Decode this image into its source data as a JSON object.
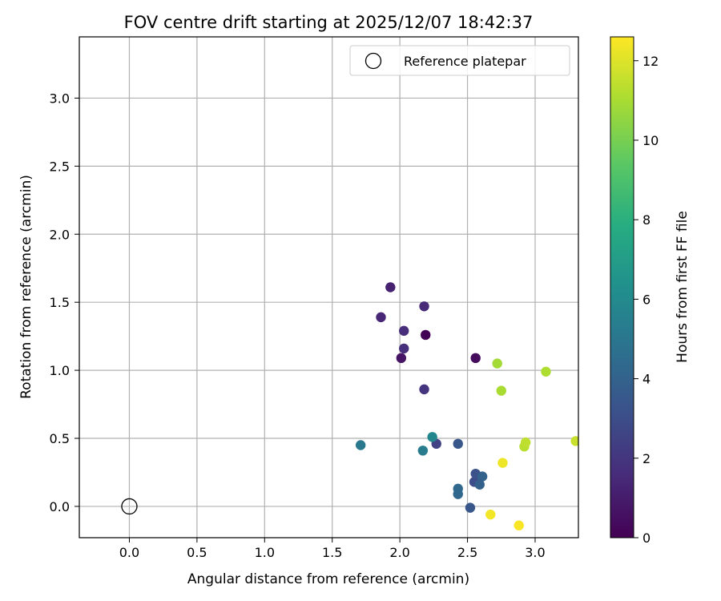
{
  "chart_data": {
    "type": "scatter",
    "title": "FOV centre drift starting at 2025/12/07 18:42:37",
    "xlabel": "Angular distance from reference (arcmin)",
    "ylabel": "Rotation from reference (arcmin)",
    "xlim": [
      -0.37,
      3.32
    ],
    "ylim": [
      -0.23,
      3.45
    ],
    "xticks": [
      "0.0",
      "0.5",
      "1.0",
      "1.5",
      "2.0",
      "2.5",
      "3.0"
    ],
    "xtick_values": [
      0.0,
      0.5,
      1.0,
      1.5,
      2.0,
      2.5,
      3.0
    ],
    "yticks": [
      "0.0",
      "0.5",
      "1.0",
      "1.5",
      "2.0",
      "2.5",
      "3.0"
    ],
    "ytick_values": [
      0.0,
      0.5,
      1.0,
      1.5,
      2.0,
      2.5,
      3.0
    ],
    "grid": true,
    "legend": {
      "placement": "upper right",
      "entries": [
        "Reference platepar"
      ]
    },
    "reference_point": {
      "x": 0.0,
      "y": 0.0
    },
    "colorbar": {
      "label": "Hours from first FF file",
      "colormap": "viridis",
      "range": [
        0,
        12.6
      ],
      "ticks": [
        "0",
        "2",
        "4",
        "6",
        "8",
        "10",
        "12"
      ],
      "tick_values": [
        0,
        2,
        4,
        6,
        8,
        10,
        12
      ]
    },
    "points": [
      {
        "x": 2.19,
        "y": 1.26,
        "h": 0.1
      },
      {
        "x": 2.56,
        "y": 1.09,
        "h": 0.4
      },
      {
        "x": 2.01,
        "y": 1.09,
        "h": 0.7
      },
      {
        "x": 1.93,
        "y": 1.61,
        "h": 1.2
      },
      {
        "x": 1.86,
        "y": 1.39,
        "h": 1.4
      },
      {
        "x": 2.18,
        "y": 1.47,
        "h": 1.5
      },
      {
        "x": 2.03,
        "y": 1.29,
        "h": 1.6
      },
      {
        "x": 2.03,
        "y": 1.16,
        "h": 1.7
      },
      {
        "x": 2.18,
        "y": 0.86,
        "h": 1.9
      },
      {
        "x": 2.27,
        "y": 0.46,
        "h": 2.5
      },
      {
        "x": 2.55,
        "y": 0.18,
        "h": 3.0
      },
      {
        "x": 2.56,
        "y": 0.24,
        "h": 3.2
      },
      {
        "x": 2.52,
        "y": -0.01,
        "h": 3.4
      },
      {
        "x": 2.43,
        "y": 0.46,
        "h": 3.5
      },
      {
        "x": 2.59,
        "y": 0.16,
        "h": 3.9
      },
      {
        "x": 2.61,
        "y": 0.22,
        "h": 4.0
      },
      {
        "x": 2.43,
        "y": 0.09,
        "h": 4.2
      },
      {
        "x": 2.43,
        "y": 0.13,
        "h": 4.3
      },
      {
        "x": 1.71,
        "y": 0.45,
        "h": 5.1
      },
      {
        "x": 2.17,
        "y": 0.41,
        "h": 5.3
      },
      {
        "x": 2.24,
        "y": 0.51,
        "h": 5.8
      },
      {
        "x": 2.72,
        "y": 1.05,
        "h": 10.9
      },
      {
        "x": 2.75,
        "y": 0.85,
        "h": 11.0
      },
      {
        "x": 3.08,
        "y": 0.99,
        "h": 11.1
      },
      {
        "x": 2.92,
        "y": 0.44,
        "h": 11.3
      },
      {
        "x": 2.93,
        "y": 0.47,
        "h": 11.4
      },
      {
        "x": 3.3,
        "y": 0.48,
        "h": 11.6
      },
      {
        "x": 2.76,
        "y": 0.32,
        "h": 12.3
      },
      {
        "x": 2.67,
        "y": -0.06,
        "h": 12.4
      },
      {
        "x": 2.88,
        "y": -0.14,
        "h": 12.5
      }
    ]
  }
}
